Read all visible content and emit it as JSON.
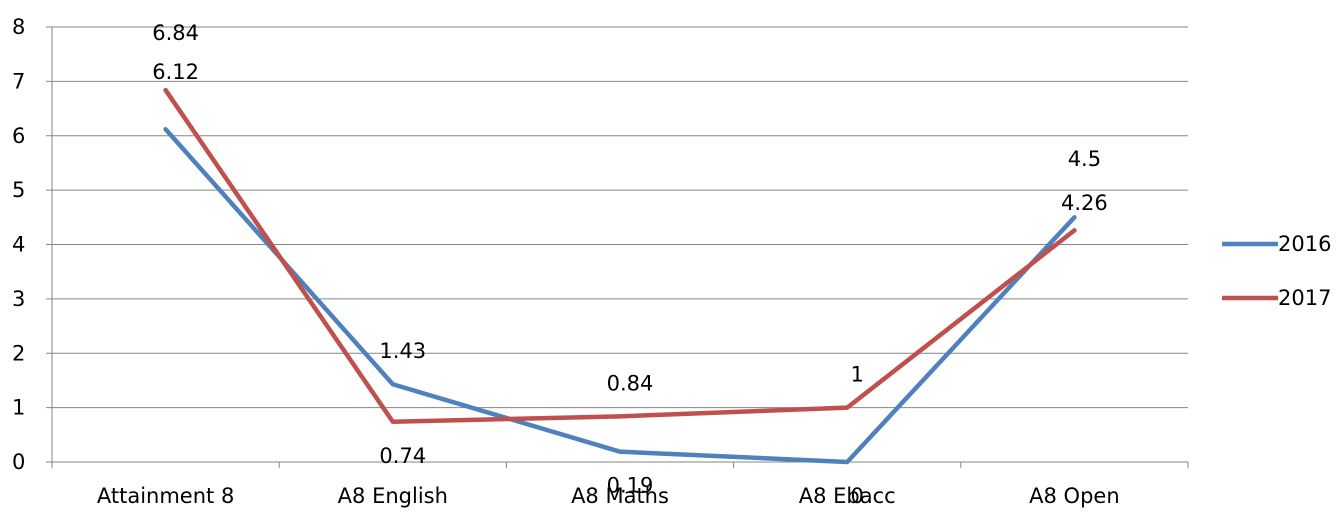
{
  "chart_data": {
    "type": "line",
    "title": "",
    "xlabel": "",
    "ylabel": "",
    "categories": [
      "Attainment 8",
      "A8 English",
      "A8 Maths",
      "A8 Ebacc",
      "A8 Open"
    ],
    "ylim": [
      0,
      8
    ],
    "yticks": [
      0,
      1,
      2,
      3,
      4,
      5,
      6,
      7,
      8
    ],
    "grid": true,
    "legend_position": "right",
    "series": [
      {
        "name": "2016",
        "color": "#4F81BD",
        "values": [
          6.12,
          1.43,
          0.19,
          0,
          4.5
        ]
      },
      {
        "name": "2017",
        "color": "#C0504D",
        "values": [
          6.84,
          0.74,
          0.84,
          1,
          4.26
        ]
      }
    ]
  }
}
